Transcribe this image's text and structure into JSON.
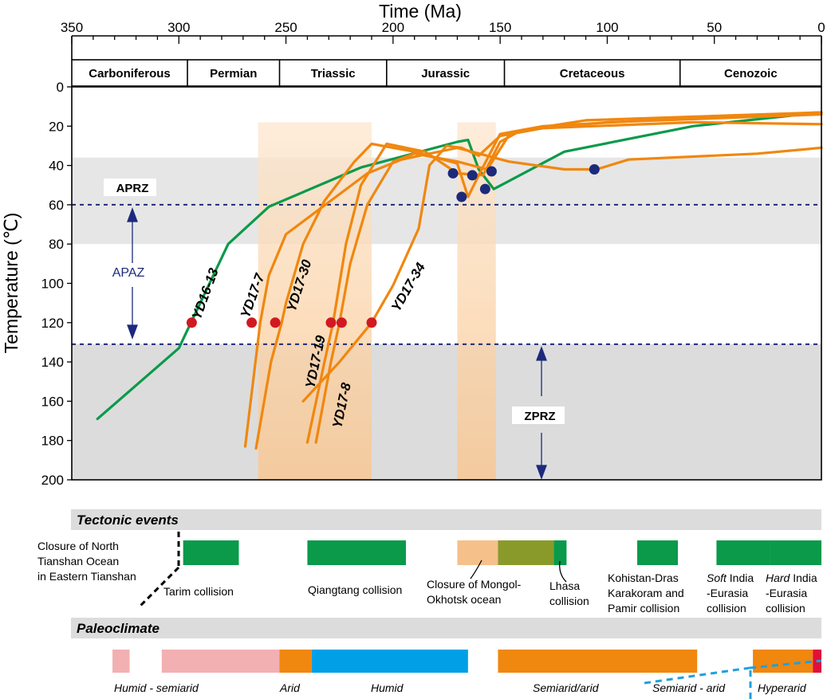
{
  "chart_data": {
    "type": "line",
    "xlabel": "Time (Ma)",
    "ylabel": "Temperature (℃)",
    "xlim": [
      350,
      0
    ],
    "ylim": [
      0,
      200
    ],
    "x_ticks": [
      350,
      300,
      250,
      200,
      150,
      100,
      50,
      0
    ],
    "y_ticks": [
      0,
      20,
      40,
      60,
      80,
      100,
      120,
      140,
      160,
      180,
      200
    ],
    "periods": [
      {
        "name": "Carboniferous",
        "start": 350,
        "end": 296
      },
      {
        "name": "Permian",
        "start": 296,
        "end": 253
      },
      {
        "name": "Triassic",
        "start": 253,
        "end": 203
      },
      {
        "name": "Jurassic",
        "start": 203,
        "end": 148
      },
      {
        "name": "Cretaceous",
        "start": 148,
        "end": 66
      },
      {
        "name": "Cenozoic",
        "start": 66,
        "end": 0
      }
    ],
    "zones": [
      {
        "name": "APRZ",
        "from": 36,
        "to": 80,
        "color": "#e6e6e6"
      },
      {
        "name": "ZPRZ",
        "from": 131,
        "to": 200,
        "color": "#dcdcdc"
      }
    ],
    "zone_labels": {
      "aprz": "APRZ",
      "apaz": "APAZ",
      "zprz": "ZPRZ"
    },
    "dashed_lines": [
      60,
      131
    ],
    "highlight_bands": [
      {
        "from": 263,
        "to": 210
      },
      {
        "from": 170,
        "to": 152
      }
    ],
    "series": [
      {
        "name": "YD16-13",
        "color": "#0a9a4a",
        "points": [
          [
            338,
            169
          ],
          [
            300,
            133
          ],
          [
            277,
            80
          ],
          [
            258,
            61
          ],
          [
            215,
            41
          ],
          [
            170,
            28
          ],
          [
            165,
            27
          ],
          [
            160,
            42
          ],
          [
            153,
            52
          ],
          [
            120,
            33
          ],
          [
            60,
            20
          ],
          [
            0,
            13
          ]
        ]
      },
      {
        "name": "YD17-7",
        "color": "#f0870f",
        "points": [
          [
            269,
            183
          ],
          [
            262,
            120
          ],
          [
            258,
            96
          ],
          [
            250,
            75
          ],
          [
            212,
            44
          ],
          [
            196,
            37
          ],
          [
            170,
            31
          ],
          [
            146,
            38
          ],
          [
            120,
            42
          ],
          [
            105,
            42
          ],
          [
            90,
            37
          ],
          [
            30,
            34
          ],
          [
            0,
            31
          ]
        ]
      },
      {
        "name": "YD17-30",
        "color": "#f0870f",
        "points": [
          [
            264,
            184
          ],
          [
            257,
            140
          ],
          [
            252,
            120
          ],
          [
            250,
            110
          ],
          [
            242,
            80
          ],
          [
            232,
            58
          ],
          [
            218,
            38
          ],
          [
            210,
            29
          ],
          [
            190,
            33
          ],
          [
            170,
            39
          ],
          [
            165,
            56
          ],
          [
            160,
            45
          ],
          [
            150,
            24
          ],
          [
            130,
            20
          ],
          [
            80,
            17
          ],
          [
            0,
            13
          ]
        ]
      },
      {
        "name": "YD17-19",
        "color": "#f0870f",
        "points": [
          [
            240,
            181
          ],
          [
            232,
            140
          ],
          [
            228,
            120
          ],
          [
            222,
            80
          ],
          [
            215,
            50
          ],
          [
            203,
            29
          ],
          [
            185,
            33
          ],
          [
            170,
            44
          ],
          [
            158,
            45
          ],
          [
            150,
            28
          ],
          [
            140,
            22
          ],
          [
            100,
            18
          ],
          [
            0,
            14
          ]
        ]
      },
      {
        "name": "YD17-8",
        "color": "#f0870f",
        "points": [
          [
            236,
            181
          ],
          [
            229,
            140
          ],
          [
            225,
            120
          ],
          [
            220,
            90
          ],
          [
            212,
            60
          ],
          [
            200,
            38
          ],
          [
            190,
            34
          ],
          [
            170,
            38
          ],
          [
            156,
            42
          ],
          [
            145,
            23
          ],
          [
            110,
            17
          ],
          [
            0,
            13
          ]
        ]
      },
      {
        "name": "YD17-34",
        "color": "#f0870f",
        "points": [
          [
            242,
            160
          ],
          [
            225,
            140
          ],
          [
            210,
            120
          ],
          [
            200,
            101
          ],
          [
            188,
            72
          ],
          [
            183,
            40
          ],
          [
            175,
            30
          ],
          [
            168,
            31
          ],
          [
            160,
            35
          ],
          [
            150,
            25
          ],
          [
            130,
            21
          ],
          [
            60,
            18
          ],
          [
            0,
            19
          ]
        ]
      }
    ],
    "markers": [
      {
        "x": 294,
        "y": 120,
        "color": "#d21921"
      },
      {
        "x": 266,
        "y": 120,
        "color": "#d21921"
      },
      {
        "x": 255,
        "y": 120,
        "color": "#d21921"
      },
      {
        "x": 229,
        "y": 120,
        "color": "#d21921"
      },
      {
        "x": 224,
        "y": 120,
        "color": "#d21921"
      },
      {
        "x": 210,
        "y": 120,
        "color": "#d21921"
      },
      {
        "x": 172,
        "y": 44,
        "color": "#1c2a7c"
      },
      {
        "x": 168,
        "y": 56,
        "color": "#1c2a7c"
      },
      {
        "x": 163,
        "y": 45,
        "color": "#1c2a7c"
      },
      {
        "x": 157,
        "y": 52,
        "color": "#1c2a7c"
      },
      {
        "x": 154,
        "y": 43,
        "color": "#1c2a7c"
      },
      {
        "x": 106,
        "y": 42,
        "color": "#1c2a7c"
      }
    ]
  },
  "tectonic": {
    "title": "Tectonic events",
    "bars": [
      {
        "start": 298,
        "end": 272,
        "color": "#0a9a4a"
      },
      {
        "start": 240,
        "end": 194,
        "color": "#0a9a4a"
      },
      {
        "start": 170,
        "end": 151,
        "color": "#f6c08a"
      },
      {
        "start": 151,
        "end": 125,
        "color": "#8a9a2a"
      },
      {
        "start": 125,
        "end": 119,
        "color": "#0a9a4a"
      },
      {
        "start": 86,
        "end": 67,
        "color": "#0a9a4a"
      },
      {
        "start": 49,
        "end": 24,
        "color": "#0a9a4a"
      },
      {
        "start": 24,
        "end": 0,
        "color": "#0a9a4a"
      }
    ],
    "labels": {
      "north_tianshan": [
        "Closure of North",
        "Tianshan Ocean",
        "in Eastern Tianshan"
      ],
      "tarim": "Tarim collision",
      "qiangtang": "Qiangtang collision",
      "mongol": [
        "Closure of Mongol-",
        "Okhotsk ocean"
      ],
      "lhasa": [
        "Lhasa",
        "collision"
      ],
      "kohistan": [
        "Kohistan-Dras",
        "Karakoram and",
        "Pamir collision"
      ],
      "soft_word": "Soft",
      "soft_rest": " India",
      "soft_lines": [
        "-Eurasia",
        "collision"
      ],
      "hard_word": "Hard",
      "hard_rest": " India",
      "hard_lines": [
        "-Eurasia",
        "collision"
      ]
    }
  },
  "paleoclimate": {
    "title": "Paleoclimate",
    "bars": [
      {
        "start": 331,
        "end": 323,
        "color": "#f2b0b2"
      },
      {
        "start": 308,
        "end": 253,
        "color": "#f2b0b2"
      },
      {
        "start": 253,
        "end": 238,
        "color": "#f0870f"
      },
      {
        "start": 238,
        "end": 165,
        "color": "#00a0e6"
      },
      {
        "start": 151,
        "end": 58,
        "color": "#f0870f"
      },
      {
        "start": 32,
        "end": 4,
        "color": "#f0870f"
      },
      {
        "start": 4,
        "end": 0,
        "color": "#e0103a"
      }
    ],
    "labels": {
      "humid_semiarid": "Humid - semiarid",
      "arid": "Arid",
      "humid": "Humid",
      "semiarid_arid": "Semiarid/arid",
      "semiarid_dash_arid": "Semiarid - arid",
      "hyperarid": "Hyperarid"
    }
  }
}
